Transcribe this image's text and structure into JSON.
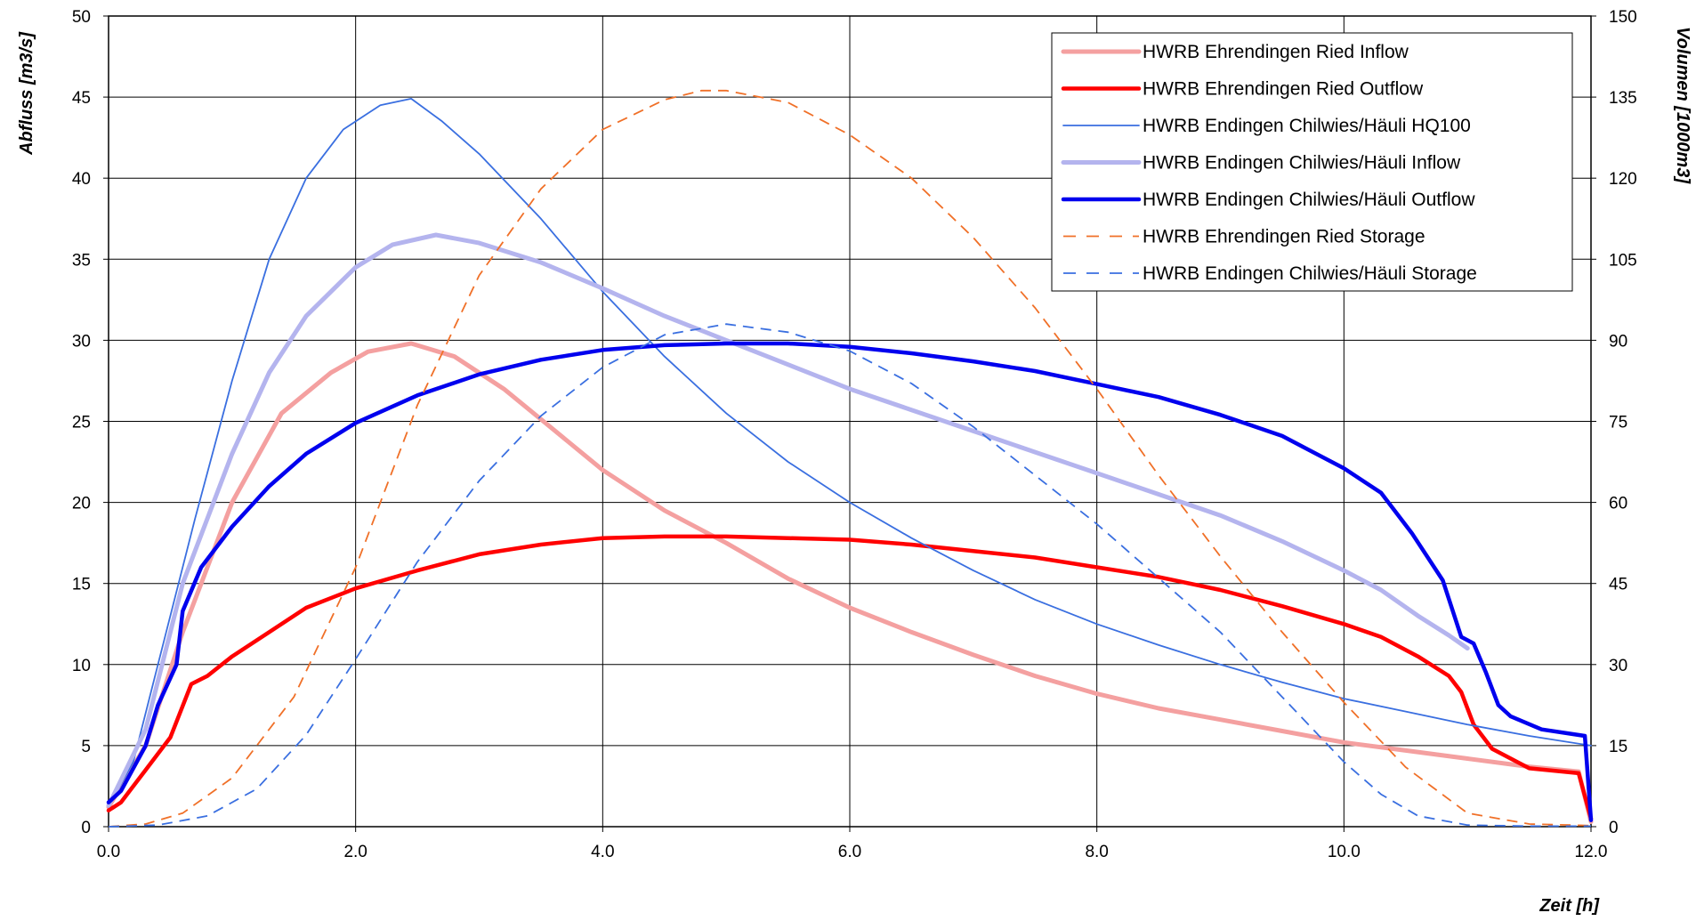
{
  "chart_data": {
    "type": "line",
    "xlabel": "Zeit [h]",
    "ylabel": "Abfluss [m3/s]",
    "y2label": "Volumen [1000m3]",
    "xlim": [
      0,
      12
    ],
    "ylim": [
      0,
      50
    ],
    "y2lim": [
      0,
      150
    ],
    "x_ticks": [
      "0.0",
      "2.0",
      "4.0",
      "6.0",
      "8.0",
      "10.0",
      "12.0"
    ],
    "y_ticks": [
      "0",
      "5",
      "10",
      "15",
      "20",
      "25",
      "30",
      "35",
      "40",
      "45",
      "50"
    ],
    "y2_ticks": [
      "0",
      "15",
      "30",
      "45",
      "60",
      "75",
      "90",
      "105",
      "120",
      "135",
      "150"
    ],
    "grid": true,
    "legend_position": "top-right",
    "series": [
      {
        "name": "HWRB Ehrendingen Ried Inflow",
        "axis": "left",
        "color": "#f4a0a0",
        "style": "thick-light",
        "points": [
          [
            0,
            1.2
          ],
          [
            0.3,
            5
          ],
          [
            0.6,
            12
          ],
          [
            1.0,
            20
          ],
          [
            1.4,
            25.5
          ],
          [
            1.8,
            28
          ],
          [
            2.1,
            29.3
          ],
          [
            2.45,
            29.8
          ],
          [
            2.8,
            29
          ],
          [
            3.2,
            27
          ],
          [
            3.6,
            24.5
          ],
          [
            4.0,
            22
          ],
          [
            4.5,
            19.5
          ],
          [
            5.0,
            17.5
          ],
          [
            5.5,
            15.3
          ],
          [
            6.0,
            13.5
          ],
          [
            6.5,
            12
          ],
          [
            7.0,
            10.6
          ],
          [
            7.5,
            9.3
          ],
          [
            8.0,
            8.2
          ],
          [
            8.5,
            7.3
          ],
          [
            9.0,
            6.6
          ],
          [
            9.5,
            5.9
          ],
          [
            10.0,
            5.2
          ],
          [
            10.5,
            4.7
          ],
          [
            11.0,
            4.2
          ],
          [
            11.5,
            3.7
          ],
          [
            11.9,
            3.4
          ],
          [
            12.0,
            0.3
          ]
        ]
      },
      {
        "name": "HWRB Ehrendingen Ried Outflow",
        "axis": "left",
        "color": "#ff0000",
        "style": "thick",
        "points": [
          [
            0,
            1
          ],
          [
            0.1,
            1.5
          ],
          [
            0.3,
            3.5
          ],
          [
            0.5,
            5.5
          ],
          [
            0.67,
            8.8
          ],
          [
            0.8,
            9.3
          ],
          [
            1.0,
            10.5
          ],
          [
            1.3,
            12
          ],
          [
            1.6,
            13.5
          ],
          [
            2.0,
            14.7
          ],
          [
            2.5,
            15.8
          ],
          [
            3.0,
            16.8
          ],
          [
            3.5,
            17.4
          ],
          [
            4.0,
            17.8
          ],
          [
            4.5,
            17.9
          ],
          [
            5.0,
            17.9
          ],
          [
            5.5,
            17.8
          ],
          [
            6.0,
            17.7
          ],
          [
            6.5,
            17.4
          ],
          [
            7.0,
            17
          ],
          [
            7.5,
            16.6
          ],
          [
            8.0,
            16
          ],
          [
            8.5,
            15.4
          ],
          [
            9.0,
            14.6
          ],
          [
            9.5,
            13.6
          ],
          [
            10.0,
            12.5
          ],
          [
            10.3,
            11.7
          ],
          [
            10.6,
            10.5
          ],
          [
            10.85,
            9.3
          ],
          [
            10.95,
            8.3
          ],
          [
            11.05,
            6.3
          ],
          [
            11.2,
            4.8
          ],
          [
            11.5,
            3.6
          ],
          [
            11.9,
            3.3
          ],
          [
            12.0,
            0.5
          ]
        ]
      },
      {
        "name": "HWRB Endingen Chilwies/Häuli HQ100",
        "axis": "left",
        "color": "#3a6fe0",
        "style": "thin",
        "points": [
          [
            0,
            1.2
          ],
          [
            0.2,
            4
          ],
          [
            0.4,
            10
          ],
          [
            0.7,
            19
          ],
          [
            1.0,
            27.5
          ],
          [
            1.3,
            35
          ],
          [
            1.6,
            40
          ],
          [
            1.9,
            43
          ],
          [
            2.2,
            44.5
          ],
          [
            2.45,
            44.9
          ],
          [
            2.7,
            43.5
          ],
          [
            3.0,
            41.5
          ],
          [
            3.5,
            37.5
          ],
          [
            4.0,
            33
          ],
          [
            4.5,
            29
          ],
          [
            5.0,
            25.5
          ],
          [
            5.5,
            22.5
          ],
          [
            6.0,
            20
          ],
          [
            6.5,
            17.8
          ],
          [
            7.0,
            15.8
          ],
          [
            7.5,
            14
          ],
          [
            8.0,
            12.5
          ],
          [
            8.5,
            11.2
          ],
          [
            9.0,
            10
          ],
          [
            9.5,
            8.9
          ],
          [
            10.0,
            7.9
          ],
          [
            10.5,
            7.1
          ],
          [
            11.0,
            6.3
          ],
          [
            11.5,
            5.6
          ],
          [
            12.0,
            5
          ]
        ]
      },
      {
        "name": "HWRB Endingen Chilwies/Häuli Inflow",
        "axis": "left",
        "color": "#b4b4ee",
        "style": "thick-light",
        "points": [
          [
            0,
            1.3
          ],
          [
            0.3,
            6
          ],
          [
            0.6,
            15
          ],
          [
            1.0,
            23
          ],
          [
            1.3,
            28
          ],
          [
            1.6,
            31.5
          ],
          [
            2.0,
            34.5
          ],
          [
            2.3,
            35.9
          ],
          [
            2.65,
            36.5
          ],
          [
            3.0,
            36
          ],
          [
            3.5,
            34.8
          ],
          [
            4.0,
            33.2
          ],
          [
            4.5,
            31.5
          ],
          [
            5.0,
            30
          ],
          [
            5.5,
            28.5
          ],
          [
            6.0,
            27
          ],
          [
            6.5,
            25.7
          ],
          [
            7.0,
            24.4
          ],
          [
            7.5,
            23.1
          ],
          [
            8.0,
            21.8
          ],
          [
            8.5,
            20.5
          ],
          [
            9.0,
            19.2
          ],
          [
            9.5,
            17.6
          ],
          [
            10.0,
            15.8
          ],
          [
            10.3,
            14.6
          ],
          [
            10.6,
            13
          ],
          [
            10.85,
            11.8
          ],
          [
            11.0,
            11
          ]
        ]
      },
      {
        "name": "HWRB Endingen Chilwies/Häuli Outflow",
        "axis": "left",
        "color": "#0000ee",
        "style": "thick",
        "points": [
          [
            0,
            1.5
          ],
          [
            0.1,
            2.2
          ],
          [
            0.3,
            5
          ],
          [
            0.4,
            7.5
          ],
          [
            0.55,
            10
          ],
          [
            0.6,
            13.3
          ],
          [
            0.75,
            16
          ],
          [
            1.0,
            18.5
          ],
          [
            1.3,
            21
          ],
          [
            1.6,
            23
          ],
          [
            2.0,
            24.9
          ],
          [
            2.5,
            26.6
          ],
          [
            3.0,
            27.9
          ],
          [
            3.5,
            28.8
          ],
          [
            4.0,
            29.4
          ],
          [
            4.5,
            29.7
          ],
          [
            5.0,
            29.8
          ],
          [
            5.5,
            29.8
          ],
          [
            6.0,
            29.6
          ],
          [
            6.5,
            29.2
          ],
          [
            7.0,
            28.7
          ],
          [
            7.5,
            28.1
          ],
          [
            8.0,
            27.3
          ],
          [
            8.5,
            26.5
          ],
          [
            9.0,
            25.4
          ],
          [
            9.5,
            24.1
          ],
          [
            10.0,
            22.1
          ],
          [
            10.3,
            20.6
          ],
          [
            10.55,
            18.1
          ],
          [
            10.8,
            15.2
          ],
          [
            10.95,
            11.7
          ],
          [
            11.05,
            11.3
          ],
          [
            11.15,
            9.5
          ],
          [
            11.25,
            7.5
          ],
          [
            11.35,
            6.8
          ],
          [
            11.6,
            6
          ],
          [
            11.95,
            5.6
          ],
          [
            12.0,
            0.4
          ]
        ]
      },
      {
        "name": "HWRB Ehrendingen Ried Storage",
        "axis": "right",
        "color": "#f07028",
        "style": "dashed",
        "points": [
          [
            0,
            0
          ],
          [
            0.3,
            0.5
          ],
          [
            0.6,
            2.5
          ],
          [
            1.0,
            9
          ],
          [
            1.5,
            24
          ],
          [
            2.0,
            48
          ],
          [
            2.5,
            78
          ],
          [
            3.0,
            102
          ],
          [
            3.5,
            118
          ],
          [
            4.0,
            129
          ],
          [
            4.5,
            134.5
          ],
          [
            4.8,
            136.2
          ],
          [
            5.0,
            136.2
          ],
          [
            5.5,
            134
          ],
          [
            6.0,
            128
          ],
          [
            6.5,
            120
          ],
          [
            7.0,
            109
          ],
          [
            7.5,
            96
          ],
          [
            8.0,
            81
          ],
          [
            8.5,
            65
          ],
          [
            9.0,
            50
          ],
          [
            9.5,
            36
          ],
          [
            10.0,
            23
          ],
          [
            10.5,
            11
          ],
          [
            11.0,
            2.5
          ],
          [
            11.5,
            0.5
          ],
          [
            12.0,
            0.2
          ]
        ]
      },
      {
        "name": "HWRB Endingen Chilwies/Häuli Storage",
        "axis": "right",
        "color": "#3a6fe0",
        "style": "dashed",
        "points": [
          [
            0,
            0
          ],
          [
            0.4,
            0.3
          ],
          [
            0.8,
            2
          ],
          [
            1.2,
            7
          ],
          [
            1.6,
            17
          ],
          [
            2.0,
            31
          ],
          [
            2.5,
            49
          ],
          [
            3.0,
            64
          ],
          [
            3.5,
            76
          ],
          [
            4.0,
            85
          ],
          [
            4.5,
            91
          ],
          [
            5.0,
            93
          ],
          [
            5.5,
            91.5
          ],
          [
            6.0,
            88
          ],
          [
            6.5,
            82
          ],
          [
            7.0,
            74
          ],
          [
            7.5,
            65
          ],
          [
            8.0,
            56
          ],
          [
            8.5,
            46
          ],
          [
            9.0,
            36
          ],
          [
            9.5,
            24
          ],
          [
            10.0,
            12
          ],
          [
            10.3,
            6
          ],
          [
            10.6,
            2
          ],
          [
            11.0,
            0.3
          ],
          [
            11.5,
            0.1
          ],
          [
            12.0,
            0.1
          ]
        ]
      }
    ]
  }
}
